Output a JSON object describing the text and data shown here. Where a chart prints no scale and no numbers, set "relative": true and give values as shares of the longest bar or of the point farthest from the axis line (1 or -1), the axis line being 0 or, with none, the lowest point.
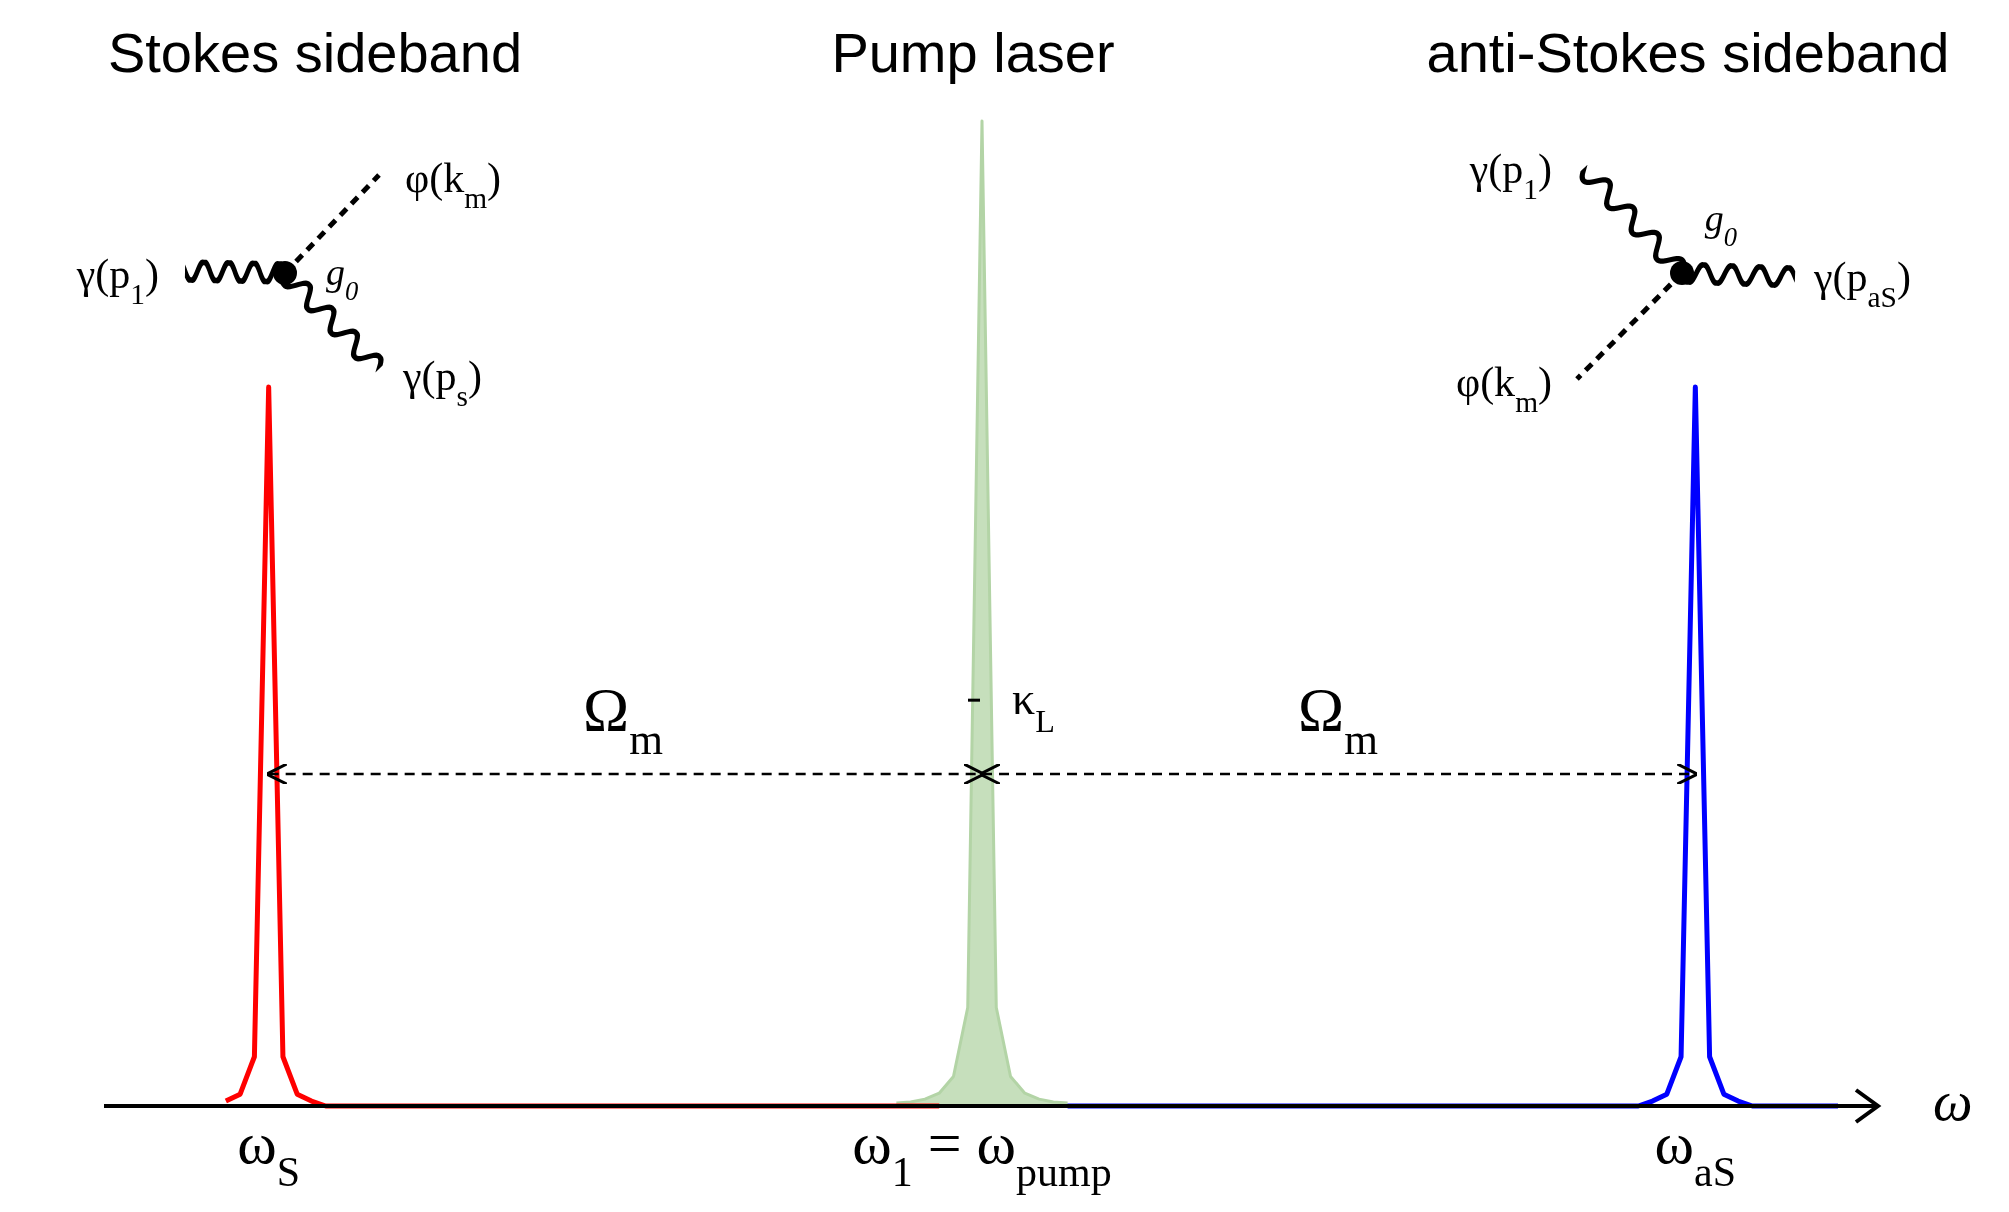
{
  "chart_data": {
    "type": "line",
    "relative": true,
    "xlabel": "ω",
    "categories": [
      null,
      null,
      null,
      null,
      null,
      null,
      null,
      null,
      null,
      null,
      "ω$_{S}$",
      null,
      null,
      null,
      null,
      null,
      null,
      null,
      null,
      null,
      null,
      null,
      null,
      null,
      null,
      null,
      null,
      null,
      null,
      null,
      null,
      null,
      null,
      null,
      null,
      null,
      null,
      null,
      null,
      null,
      null,
      null,
      null,
      null,
      null,
      null,
      null,
      null,
      null,
      null,
      null,
      null,
      null,
      null,
      null,
      null,
      null,
      null,
      null,
      null,
      "ω$_{1}$ = ω$_{pump}$",
      null,
      null,
      null,
      null,
      null,
      null,
      null,
      null,
      null,
      null,
      null,
      null,
      null,
      null,
      null,
      null,
      null,
      null,
      null,
      null,
      null,
      null,
      null,
      null,
      null,
      null,
      null,
      null,
      null,
      null,
      null,
      null,
      null,
      null,
      null,
      null,
      null,
      null,
      null,
      null,
      null,
      null,
      null,
      null,
      null,
      null,
      null,
      null,
      null,
      "ω$_{aS}$",
      null,
      null,
      null,
      null,
      null,
      null,
      null,
      null,
      null,
      null
    ],
    "series": [
      {
        "type": "area",
        "color": "#b3d4a6",
        "values": [
          null,
          null,
          null,
          null,
          null,
          null,
          null,
          null,
          null,
          null,
          null,
          null,
          null,
          null,
          null,
          null,
          null,
          null,
          null,
          null,
          null,
          null,
          null,
          null,
          null,
          null,
          null,
          null,
          null,
          null,
          null,
          null,
          null,
          null,
          null,
          null,
          null,
          null,
          null,
          null,
          null,
          null,
          null,
          null,
          null,
          null,
          null,
          null,
          null,
          null,
          null,
          null,
          null,
          null,
          0.003,
          0.004,
          0.007,
          0.013,
          0.03,
          0.1,
          1,
          0.1,
          0.03,
          0.013,
          0.007,
          0.004,
          0.003,
          null,
          null,
          null,
          null,
          null,
          null,
          null,
          null,
          null,
          null,
          null,
          null,
          null,
          null,
          null,
          null,
          null,
          null,
          null,
          null,
          null,
          null,
          null,
          null,
          null,
          null,
          null,
          null,
          null,
          null,
          null,
          null,
          null,
          null,
          null,
          null,
          null,
          null,
          null,
          null,
          null,
          null,
          null,
          null,
          null,
          null,
          null,
          null,
          null,
          null,
          null,
          null,
          null,
          null
        ]
      },
      {
        "type": "line",
        "color": "#ff0000",
        "values": [
          null,
          null,
          null,
          null,
          null,
          null,
          null,
          0.005,
          0.012,
          0.05,
          0.73,
          0.05,
          0.012,
          0.005,
          0,
          0,
          0,
          0,
          0,
          0,
          0,
          0,
          0,
          0,
          0,
          0,
          0,
          0,
          0,
          0,
          0,
          0,
          0,
          0,
          0,
          0,
          0,
          0,
          0,
          0,
          0,
          0,
          0,
          0,
          0,
          0,
          0,
          0,
          0,
          0,
          0,
          0,
          0,
          0,
          0,
          0,
          0,
          0,
          null,
          null,
          null,
          null,
          null,
          null,
          null,
          null,
          null,
          null,
          null,
          null,
          null,
          null,
          null,
          null,
          null,
          null,
          null,
          null,
          null,
          null,
          null,
          null,
          null,
          null,
          null,
          null,
          null,
          null,
          null,
          null,
          null,
          null,
          null,
          null,
          null,
          null,
          null,
          null,
          null,
          null,
          null,
          null,
          null,
          null,
          null,
          null,
          null,
          null,
          null,
          null,
          null,
          null,
          null,
          null,
          null,
          null,
          null,
          null,
          null,
          null,
          null
        ]
      },
      {
        "type": "line",
        "color": "#0000ff",
        "values": [
          null,
          null,
          null,
          null,
          null,
          null,
          null,
          null,
          null,
          null,
          null,
          null,
          null,
          null,
          null,
          null,
          null,
          null,
          null,
          null,
          null,
          null,
          null,
          null,
          null,
          null,
          null,
          null,
          null,
          null,
          null,
          null,
          null,
          null,
          null,
          null,
          null,
          null,
          null,
          null,
          null,
          null,
          null,
          null,
          null,
          null,
          null,
          null,
          null,
          null,
          null,
          null,
          null,
          null,
          null,
          null,
          null,
          null,
          null,
          null,
          null,
          null,
          null,
          null,
          null,
          null,
          0,
          0,
          0,
          0,
          0,
          0,
          0,
          0,
          0,
          0,
          0,
          0,
          0,
          0,
          0,
          0,
          0,
          0,
          0,
          0,
          0,
          0,
          0,
          0,
          0,
          0,
          0,
          0,
          0,
          0,
          0,
          0,
          0,
          0,
          0,
          0,
          0,
          0,
          0,
          0,
          0,
          0.005,
          0.012,
          0.05,
          0.73,
          0.05,
          0.012,
          0.005,
          0,
          0,
          0,
          0,
          0,
          0,
          0
        ]
      }
    ],
    "annotations": [
      "Stokes sideband",
      "Pump laser",
      "anti-Stokes sideband",
      "γ(p$_{1}$)",
      "φ(k$_{m}$)",
      "g$_{0}$",
      "γ(p$_{s}$)",
      "γ(p$_{1}$)",
      "g$_{0}$",
      "γ(p$_{aS}$)",
      "φ(k$_{m}$)",
      "Ω$_{m}$",
      "Ω$_{m}$",
      {
        "text": "κ$_{L}$",
        "x": "ω$_{1}$ = ω$_{pump}$",
        "y": 0.412
      }
    ]
  }
}
